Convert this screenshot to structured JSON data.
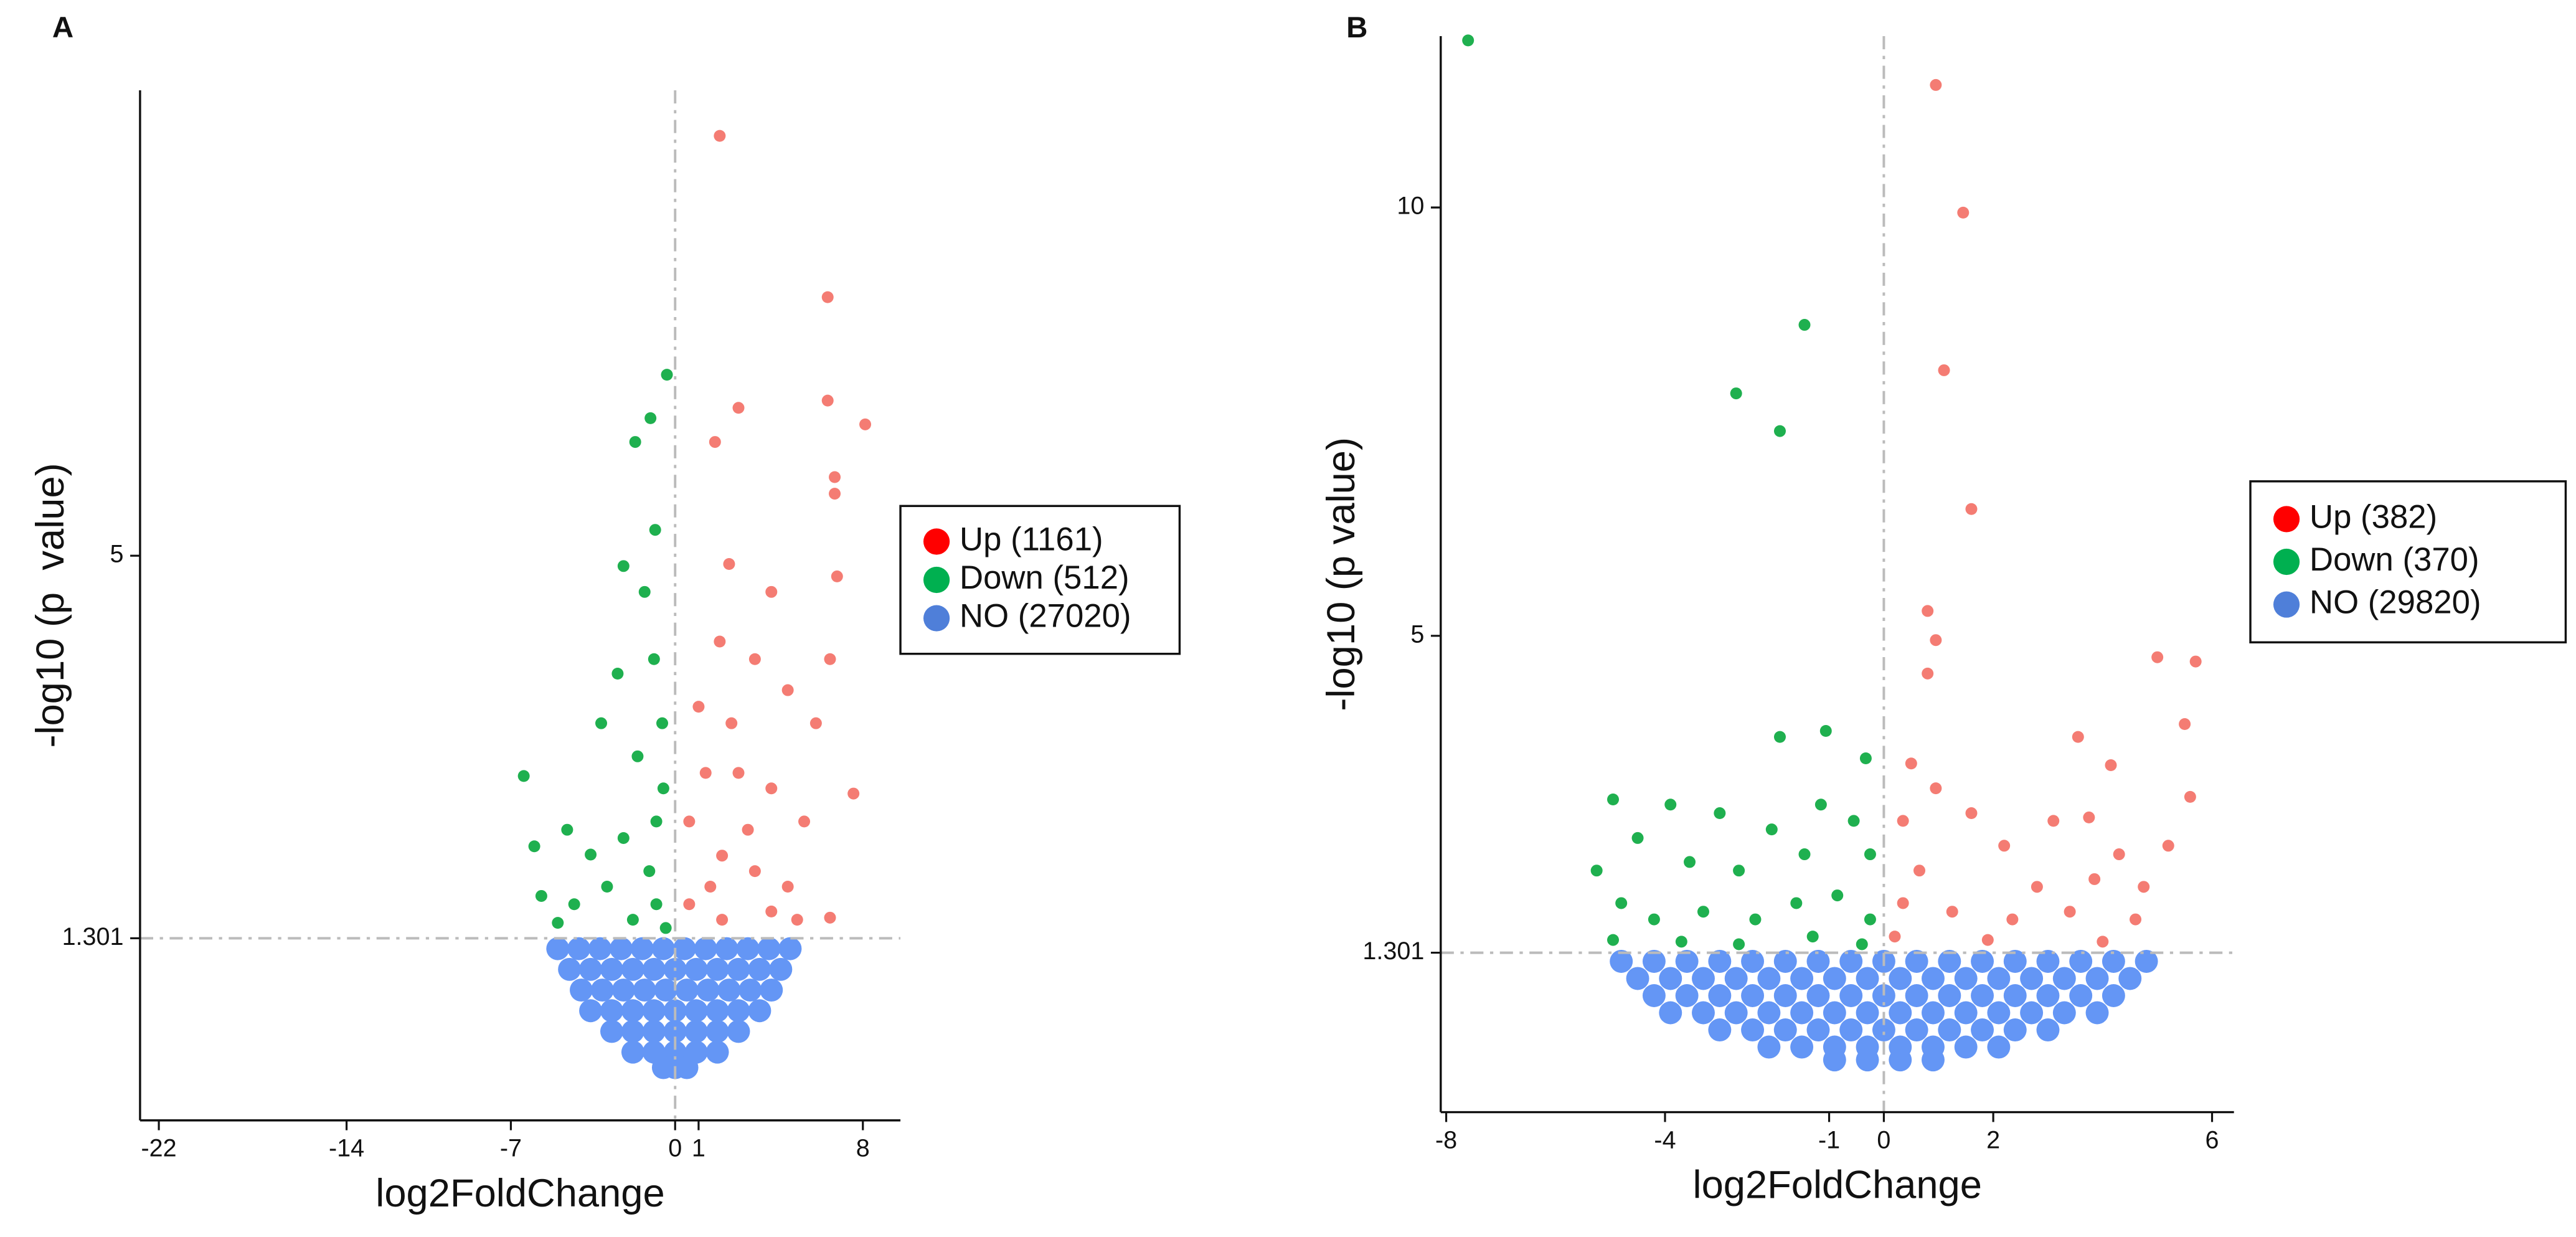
{
  "chart_data": [
    {
      "type": "scatter",
      "label": "A",
      "x_label": "log2FoldChange",
      "y_label": "-log10 (p  value)",
      "xlim": [
        -22.8,
        9.6
      ],
      "ylim": [
        -0.46,
        9.5
      ],
      "xticks": [
        -22,
        -14,
        -7,
        0,
        1,
        8
      ],
      "yticks": [
        1.301,
        5
      ],
      "vline": 0,
      "hline": 1.301,
      "legend": "outside right",
      "series": [
        {
          "name": "Up (1161)",
          "color": "#f47c73",
          "legend_color": "#ff0000",
          "x": [
            1.9,
            6.5,
            6.5,
            8.1,
            2.7,
            1.7,
            6.8,
            6.8,
            6.9,
            6.6,
            6.0,
            7.6,
            6.6,
            2.3,
            1.9,
            4.1,
            3.4,
            4.8,
            1.0,
            1.3,
            2.7,
            4.1,
            5.5,
            0.6,
            2.0,
            3.4,
            4.8,
            0.6,
            2.0,
            4.1,
            5.2,
            1.5,
            3.1,
            2.4
          ],
          "values": [
            9.06,
            7.5,
            6.5,
            6.27,
            6.43,
            6.1,
            5.76,
            5.6,
            4.8,
            4.0,
            3.38,
            2.7,
            1.5,
            4.92,
            4.17,
            4.65,
            4.0,
            3.7,
            3.54,
            2.9,
            2.9,
            2.75,
            2.43,
            2.43,
            2.1,
            1.95,
            1.8,
            1.63,
            1.48,
            1.56,
            1.48,
            1.8,
            2.35,
            3.38
          ]
        },
        {
          "name": "Down (512)",
          "color": "#1fb04f",
          "legend_color": "#00b050",
          "x": [
            -0.35,
            -1.05,
            -1.7,
            -0.85,
            -2.2,
            -1.3,
            -0.9,
            -2.45,
            -3.15,
            -1.6,
            -6.45,
            -0.5,
            -4.6,
            -6.0,
            -3.6,
            -2.2,
            -1.1,
            -5.7,
            -4.3,
            -2.9,
            -0.8,
            -1.8,
            -5.0,
            -0.4,
            -0.8,
            -0.55
          ],
          "values": [
            6.75,
            6.33,
            6.1,
            5.25,
            4.9,
            4.65,
            4.0,
            3.86,
            3.38,
            3.06,
            2.87,
            2.75,
            2.35,
            2.19,
            2.11,
            2.27,
            1.95,
            1.71,
            1.63,
            1.8,
            1.63,
            1.48,
            1.45,
            1.4,
            2.43,
            3.38
          ]
        },
        {
          "name": "NO (27020)",
          "color": "#6496f5",
          "legend_color": "#4f7fd9",
          "x": [
            -5.0,
            -4.1,
            -3.2,
            -2.3,
            -1.4,
            -0.5,
            0.4,
            1.3,
            2.2,
            3.1,
            4.0,
            4.9,
            -4.5,
            -3.6,
            -2.7,
            -1.8,
            -0.9,
            0,
            0.9,
            1.8,
            2.7,
            3.6,
            4.5,
            -4.0,
            -3.1,
            -2.2,
            -1.3,
            -0.4,
            0.5,
            1.4,
            2.3,
            3.2,
            4.1,
            -3.6,
            -2.7,
            -1.8,
            -0.9,
            0,
            0.9,
            1.8,
            2.7,
            3.6,
            -2.7,
            -1.8,
            -0.9,
            0,
            0.9,
            1.8,
            2.7,
            -1.8,
            -0.9,
            0,
            0.9,
            1.8,
            -0.5,
            0,
            0.5
          ],
          "values": [
            1.2,
            1.2,
            1.2,
            1.2,
            1.2,
            1.2,
            1.2,
            1.2,
            1.2,
            1.2,
            1.2,
            1.2,
            1.0,
            1.0,
            1.0,
            1.0,
            1.0,
            1.0,
            1.0,
            1.0,
            1.0,
            1.0,
            1.0,
            0.8,
            0.8,
            0.8,
            0.8,
            0.8,
            0.8,
            0.8,
            0.8,
            0.8,
            0.8,
            0.6,
            0.6,
            0.6,
            0.6,
            0.6,
            0.6,
            0.6,
            0.6,
            0.6,
            0.4,
            0.4,
            0.4,
            0.4,
            0.4,
            0.4,
            0.4,
            0.2,
            0.2,
            0.2,
            0.2,
            0.2,
            0.05,
            0.05,
            0.05
          ]
        }
      ]
    },
    {
      "type": "scatter",
      "label": "B",
      "x_label": "log2FoldChange",
      "y_label": "-log10 (p value)",
      "xlim": [
        -8.1,
        6.4
      ],
      "ylim": [
        -0.56,
        12.0
      ],
      "xticks": [
        -8,
        -4,
        -1,
        0,
        2,
        6
      ],
      "yticks": [
        1.301,
        5,
        10
      ],
      "vline": 0,
      "hline": 1.301,
      "legend": "outside right",
      "series": [
        {
          "name": "Up (382)",
          "color": "#f47c73",
          "legend_color": "#ff0000",
          "x": [
            0.95,
            1.45,
            1.1,
            1.6,
            0.8,
            0.95,
            0.8,
            5.0,
            5.7,
            5.5,
            3.55,
            4.15,
            5.6,
            0.5,
            0.95,
            0.35,
            1.6,
            3.1,
            3.75,
            2.2,
            4.3,
            5.2,
            0.65,
            2.8,
            3.85,
            4.75,
            0.35,
            1.25,
            2.35,
            3.4,
            4.6,
            0.2,
            1.9,
            4.0
          ],
          "values": [
            11.43,
            9.94,
            8.1,
            6.48,
            5.29,
            4.95,
            4.56,
            4.75,
            4.7,
            3.97,
            3.82,
            3.49,
            3.12,
            3.51,
            3.22,
            2.84,
            2.93,
            2.84,
            2.88,
            2.55,
            2.45,
            2.55,
            2.26,
            2.07,
            2.16,
            2.07,
            1.88,
            1.78,
            1.69,
            1.78,
            1.69,
            1.49,
            1.45,
            1.43
          ]
        },
        {
          "name": "Down (370)",
          "color": "#1fb04f",
          "legend_color": "#00b050",
          "x": [
            -7.6,
            -1.45,
            -2.7,
            -1.9,
            -1.06,
            -1.9,
            -0.33,
            -4.95,
            -3.9,
            -3.0,
            -1.15,
            -4.5,
            -2.05,
            -0.55,
            -5.25,
            -3.55,
            -2.65,
            -1.45,
            -0.25,
            -4.8,
            -4.2,
            -3.3,
            -2.35,
            -1.6,
            -0.85,
            -0.25,
            -4.95,
            -3.7,
            -2.65,
            -1.3,
            -0.4
          ],
          "values": [
            11.95,
            8.63,
            7.83,
            7.39,
            3.89,
            3.82,
            3.57,
            3.09,
            3.03,
            2.93,
            3.03,
            2.64,
            2.74,
            2.84,
            2.26,
            2.36,
            2.26,
            2.45,
            2.45,
            1.88,
            1.69,
            1.78,
            1.69,
            1.88,
            1.97,
            1.69,
            1.45,
            1.43,
            1.4,
            1.49,
            1.4
          ]
        },
        {
          "name": "NO (29820)",
          "color": "#6496f5",
          "legend_color": "#4f7fd9",
          "x": [
            -4.8,
            -4.2,
            -3.6,
            -3.0,
            -2.4,
            -1.8,
            -1.2,
            -0.6,
            0,
            0.6,
            1.2,
            1.8,
            2.4,
            3.0,
            3.6,
            4.2,
            4.8,
            -4.5,
            -3.9,
            -3.3,
            -2.7,
            -2.1,
            -1.5,
            -0.9,
            -0.3,
            0.3,
            0.9,
            1.5,
            2.1,
            2.7,
            3.3,
            3.9,
            4.5,
            -4.2,
            -3.6,
            -3.0,
            -2.4,
            -1.8,
            -1.2,
            -0.6,
            0,
            0.6,
            1.2,
            1.8,
            2.4,
            3.0,
            3.6,
            4.2,
            -3.9,
            -3.3,
            -2.7,
            -2.1,
            -1.5,
            -0.9,
            -0.3,
            0.3,
            0.9,
            1.5,
            2.1,
            2.7,
            3.3,
            3.9,
            -3.0,
            -2.4,
            -1.8,
            -1.2,
            -0.6,
            0,
            0.6,
            1.2,
            1.8,
            2.4,
            3.0,
            -2.1,
            -1.5,
            -0.9,
            -0.3,
            0.3,
            0.9,
            1.5,
            2.1,
            -0.9,
            -0.3,
            0.3,
            0.9
          ],
          "values": [
            1.2,
            1.2,
            1.2,
            1.2,
            1.2,
            1.2,
            1.2,
            1.2,
            1.2,
            1.2,
            1.2,
            1.2,
            1.2,
            1.2,
            1.2,
            1.2,
            1.2,
            1.0,
            1.0,
            1.0,
            1.0,
            1.0,
            1.0,
            1.0,
            1.0,
            1.0,
            1.0,
            1.0,
            1.0,
            1.0,
            1.0,
            1.0,
            1.0,
            0.8,
            0.8,
            0.8,
            0.8,
            0.8,
            0.8,
            0.8,
            0.8,
            0.8,
            0.8,
            0.8,
            0.8,
            0.8,
            0.8,
            0.8,
            0.6,
            0.6,
            0.6,
            0.6,
            0.6,
            0.6,
            0.6,
            0.6,
            0.6,
            0.6,
            0.6,
            0.6,
            0.6,
            0.6,
            0.4,
            0.4,
            0.4,
            0.4,
            0.4,
            0.4,
            0.4,
            0.4,
            0.4,
            0.4,
            0.4,
            0.2,
            0.2,
            0.2,
            0.2,
            0.2,
            0.2,
            0.2,
            0.2,
            0.05,
            0.05,
            0.05,
            0.05
          ]
        }
      ]
    }
  ]
}
